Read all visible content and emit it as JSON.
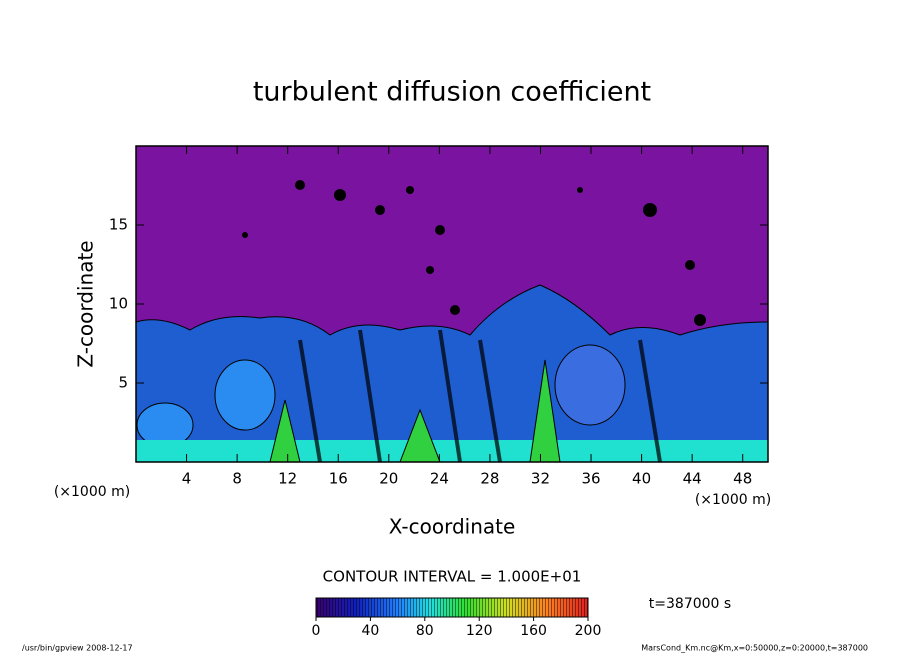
{
  "chart_data": {
    "type": "contour",
    "title": "turbulent diffusion coefficient",
    "xlabel": "X-coordinate",
    "ylabel": "Z-coordinate",
    "x_unit": "(×1000 m)",
    "xlim": [
      0,
      50
    ],
    "ylim": [
      0,
      20
    ],
    "xticks": [
      4,
      8,
      12,
      16,
      20,
      24,
      28,
      32,
      36,
      40,
      44,
      48
    ],
    "yticks": [
      5,
      10,
      15
    ],
    "contour_interval": "CONTOUR INTERVAL = 1.000E+01",
    "colorbar_lim": [
      0,
      200
    ],
    "colorbar_ticks": [
      0,
      40,
      80,
      120,
      160,
      200
    ],
    "time_label": "t=387000 s",
    "footer_left": "/usr/bin/gpview  2008-12-17",
    "footer_right": "MarsCond_Km.nc@Km,x=0:50000,z=0:20000,t=387000"
  }
}
